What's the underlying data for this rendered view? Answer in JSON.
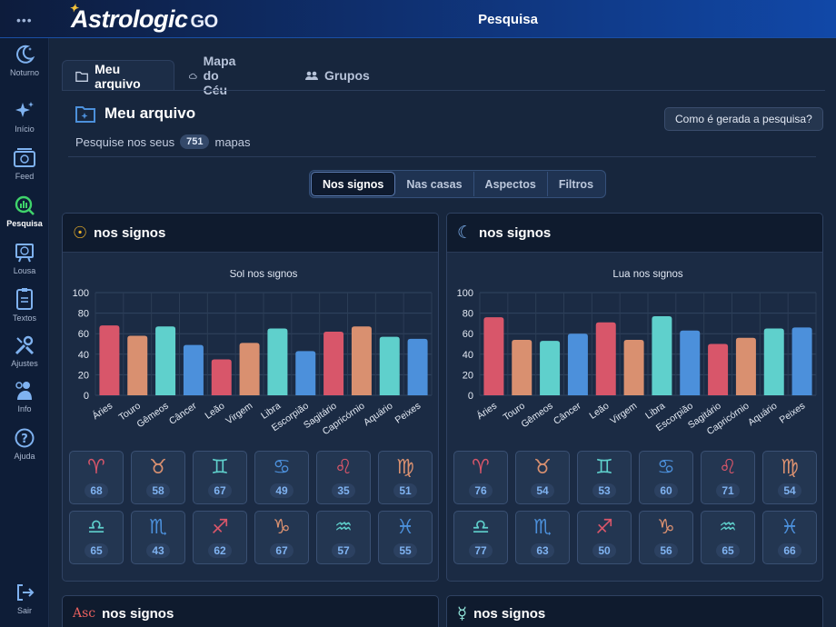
{
  "app": {
    "logo": "Astrologic",
    "logo_suffix": "GO",
    "page_title": "Pesquisa",
    "menu_dots": "•••"
  },
  "sidebar": {
    "items": [
      {
        "label": "Noturno",
        "icon": "moon-icon"
      },
      {
        "label": "Início",
        "icon": "sparkles-icon"
      },
      {
        "label": "Feed",
        "icon": "feed-icon"
      },
      {
        "label": "Pesquisa",
        "icon": "search-chart-icon",
        "active": true
      },
      {
        "label": "Lousa",
        "icon": "board-icon"
      },
      {
        "label": "Textos",
        "icon": "document-icon"
      },
      {
        "label": "Ajustes",
        "icon": "tools-icon"
      },
      {
        "label": "Info",
        "icon": "info-person-icon"
      },
      {
        "label": "Ajuda",
        "icon": "help-icon"
      },
      {
        "label": "Sair",
        "icon": "logout-icon"
      }
    ]
  },
  "tabs": [
    {
      "label": "Meu arquivo",
      "active": true
    },
    {
      "label": "Mapa do Céu"
    },
    {
      "label": "Grupos"
    }
  ],
  "section": {
    "title": "Meu arquivo",
    "subtitle_pre": "Pesquise nos seus",
    "count": "751",
    "subtitle_post": "mapas",
    "help_button": "Como é gerada a pesquisa?"
  },
  "segments": [
    {
      "label": "Nos signos",
      "active": true
    },
    {
      "label": "Nas casas"
    },
    {
      "label": "Aspectos"
    },
    {
      "label": "Filtros"
    }
  ],
  "cards": [
    {
      "title": "nos signos",
      "planet_symbol": "☉",
      "planet_color": "#f0b429"
    },
    {
      "title": "nos signos",
      "planet_symbol": "☾",
      "planet_color": "#7fb2f0"
    }
  ],
  "bottom_cards": [
    {
      "title": "nos signos",
      "planet_symbol": "Asc",
      "planet_color": "#e8605e"
    },
    {
      "title": "nos signos",
      "planet_symbol": "☿",
      "planet_color": "#8ee0d6"
    }
  ],
  "colors": {
    "fire": "#d8566a",
    "earth": "#d99070",
    "air": "#5fd0cc",
    "water": "#4c90db"
  },
  "signs": [
    {
      "name": "Áries",
      "glyph": "♈",
      "element": "fire"
    },
    {
      "name": "Touro",
      "glyph": "♉",
      "element": "earth"
    },
    {
      "name": "Gêmeos",
      "glyph": "♊",
      "element": "air"
    },
    {
      "name": "Câncer",
      "glyph": "♋",
      "element": "water"
    },
    {
      "name": "Leão",
      "glyph": "♌",
      "element": "fire"
    },
    {
      "name": "Virgem",
      "glyph": "♍",
      "element": "earth"
    },
    {
      "name": "Libra",
      "glyph": "♎",
      "element": "air"
    },
    {
      "name": "Escorpião",
      "glyph": "♏",
      "element": "water"
    },
    {
      "name": "Sagitário",
      "glyph": "♐",
      "element": "fire"
    },
    {
      "name": "Capricórnio",
      "glyph": "♑",
      "element": "earth"
    },
    {
      "name": "Aquário",
      "glyph": "♒",
      "element": "air"
    },
    {
      "name": "Peixes",
      "glyph": "♓",
      "element": "water"
    }
  ],
  "chart_data": [
    {
      "type": "bar",
      "title": "Sol nos signos",
      "categories": [
        "Áries",
        "Touro",
        "Gêmeos",
        "Câncer",
        "Leão",
        "Virgem",
        "Libra",
        "Escorpião",
        "Sagitário",
        "Capricórnio",
        "Aquário",
        "Peixes"
      ],
      "values": [
        68,
        58,
        67,
        49,
        35,
        51,
        65,
        43,
        62,
        67,
        57,
        55
      ],
      "ylim": [
        0,
        100
      ],
      "yticks": [
        0,
        20,
        40,
        60,
        80,
        100
      ],
      "grid": true
    },
    {
      "type": "bar",
      "title": "Lua nos signos",
      "categories": [
        "Áries",
        "Touro",
        "Gêmeos",
        "Câncer",
        "Leão",
        "Virgem",
        "Libra",
        "Escorpião",
        "Sagitário",
        "Capricórnio",
        "Aquário",
        "Peixes"
      ],
      "values": [
        76,
        54,
        53,
        60,
        71,
        54,
        77,
        63,
        50,
        56,
        65,
        66
      ],
      "ylim": [
        0,
        100
      ],
      "yticks": [
        0,
        20,
        40,
        60,
        80,
        100
      ],
      "grid": true
    }
  ]
}
